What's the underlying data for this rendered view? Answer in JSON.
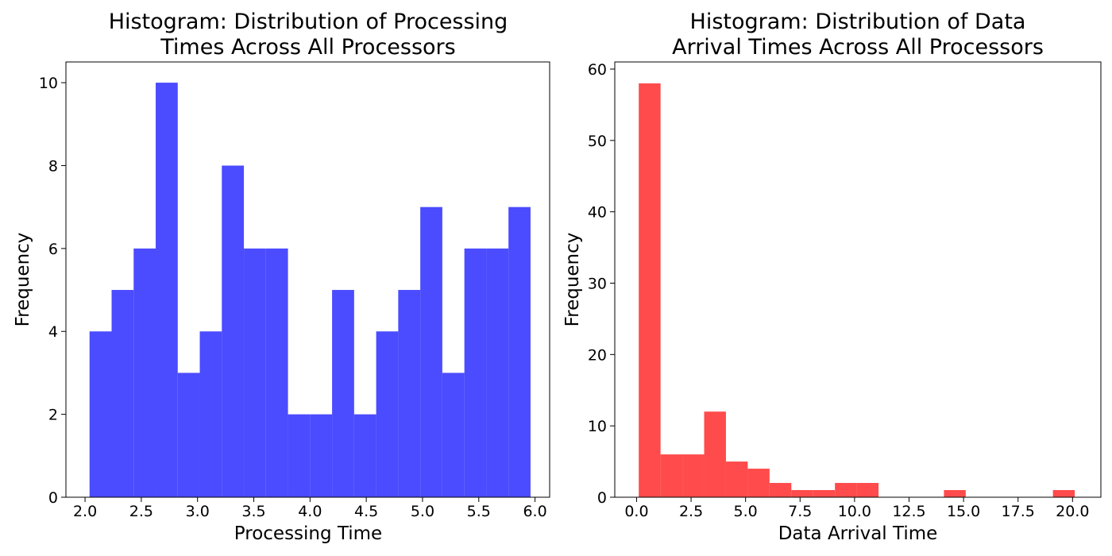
{
  "chart_data": [
    {
      "type": "bar",
      "subtype": "histogram",
      "title_lines": [
        "Histogram: Distribution of Processing",
        "Times Across All Processors"
      ],
      "xlabel": "Processing Time",
      "ylabel": "Frequency",
      "color": "#4b4bff",
      "xlim": [
        1.83,
        6.13
      ],
      "ylim": [
        0,
        10.5
      ],
      "xticks": [
        2.0,
        2.5,
        3.0,
        3.5,
        4.0,
        4.5,
        5.0,
        5.5,
        6.0
      ],
      "xtick_labels": [
        "2.0",
        "2.5",
        "3.0",
        "3.5",
        "4.0",
        "4.5",
        "5.0",
        "5.5",
        "6.0"
      ],
      "yticks": [
        0,
        2,
        4,
        6,
        8,
        10
      ],
      "ytick_labels": [
        "0",
        "2",
        "4",
        "6",
        "8",
        "10"
      ],
      "bin_edges": [
        2.04,
        2.236,
        2.432,
        2.628,
        2.824,
        3.02,
        3.216,
        3.412,
        3.608,
        3.804,
        4.0,
        4.196,
        4.392,
        4.588,
        4.784,
        4.98,
        5.176,
        5.372,
        5.568,
        5.764,
        5.96
      ],
      "values": [
        4,
        5,
        6,
        10,
        3,
        4,
        8,
        6,
        6,
        2,
        2,
        5,
        2,
        4,
        5,
        7,
        3,
        6,
        6,
        7
      ],
      "grid": false
    },
    {
      "type": "bar",
      "subtype": "histogram",
      "title_lines": [
        "Histogram: Distribution of Data",
        "Arrival Times Across All Processors"
      ],
      "xlabel": "Data Arrival Time",
      "ylabel": "Frequency",
      "color": "#ff4b4b",
      "xlim": [
        -1.0,
        21.3
      ],
      "ylim": [
        0,
        61
      ],
      "xticks": [
        0.0,
        2.5,
        5.0,
        7.5,
        10.0,
        12.5,
        15.0,
        17.5,
        20.0
      ],
      "xtick_labels": [
        "0.0",
        "2.5",
        "5.0",
        "7.5",
        "10.0",
        "12.5",
        "15.0",
        "17.5",
        "20.0"
      ],
      "yticks": [
        0,
        10,
        20,
        30,
        40,
        50,
        60
      ],
      "ytick_labels": [
        "0",
        "10",
        "20",
        "30",
        "40",
        "50",
        "60"
      ],
      "bin_edges": [
        0.1,
        1.1,
        2.1,
        3.1,
        4.1,
        5.1,
        6.1,
        7.1,
        8.1,
        9.1,
        10.1,
        11.1,
        12.1,
        13.1,
        14.1,
        15.1,
        16.1,
        17.1,
        18.1,
        19.1,
        20.1
      ],
      "values": [
        58,
        6,
        6,
        12,
        5,
        4,
        2,
        1,
        1,
        2,
        2,
        0,
        0,
        0,
        1,
        0,
        0,
        0,
        0,
        1
      ],
      "grid": false
    }
  ]
}
